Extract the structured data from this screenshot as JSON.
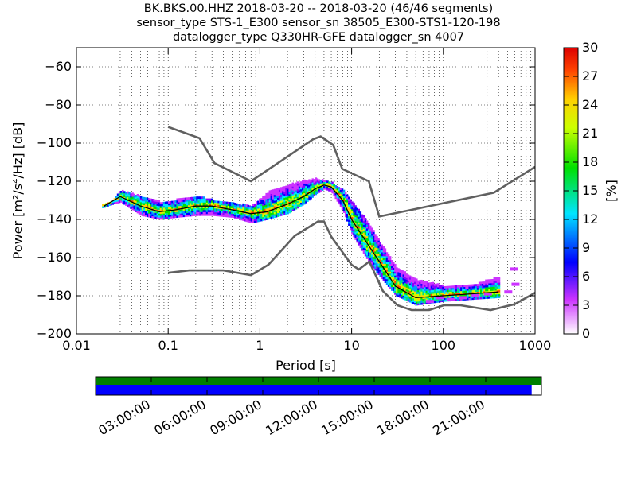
{
  "title_lines": [
    "BK.BKS.00.HHZ   2018-03-20 -- 2018-03-20  (46/46 segments)",
    "sensor_type STS-1_E300 sensor_sn 38505_E300-STS1-120-198",
    "datalogger_type Q330HR-GFE datalogger_sn 4007"
  ],
  "chart_data": {
    "type": "heatmap",
    "xlabel": "Period [s]",
    "ylabel": "Power [m²/s⁴/Hz] [dB]",
    "xscale": "log",
    "xlim": [
      0.01,
      1000
    ],
    "ylim": [
      -200,
      -50
    ],
    "x_ticks": [
      0.01,
      0.1,
      1,
      10,
      100,
      1000
    ],
    "x_tick_labels": [
      "0.01",
      "0.1",
      "1",
      "10",
      "100",
      "1000"
    ],
    "y_ticks": [
      -200,
      -180,
      -160,
      -140,
      -120,
      -100,
      -80,
      -60
    ],
    "y_tick_labels": [
      "−200",
      "−180",
      "−160",
      "−140",
      "−120",
      "−100",
      "−80",
      "−60"
    ],
    "grid": true,
    "colorbar": {
      "label": "[%]",
      "range": [
        0,
        30
      ],
      "ticks": [
        0,
        3,
        6,
        9,
        12,
        15,
        18,
        21,
        24,
        27,
        30
      ],
      "tick_labels": [
        "0",
        "3",
        "6",
        "9",
        "12",
        "15",
        "18",
        "21",
        "24",
        "27",
        "30"
      ]
    },
    "mode_line": {
      "x": [
        0.02,
        0.03,
        0.05,
        0.08,
        0.12,
        0.2,
        0.3,
        0.5,
        0.8,
        1.2,
        2,
        3,
        4,
        5,
        6,
        8,
        10,
        15,
        20,
        30,
        50,
        100,
        200,
        400
      ],
      "y": [
        -133,
        -128,
        -133,
        -136,
        -135,
        -133,
        -133,
        -135,
        -137,
        -136,
        -132,
        -128,
        -124,
        -122,
        -123,
        -130,
        -140,
        -153,
        -162,
        -175,
        -181,
        -180,
        -179,
        -178
      ]
    },
    "nhnm": {
      "x": [
        0.1,
        0.22,
        0.32,
        0.8,
        3.8,
        4.6,
        6.3,
        7.9,
        15.4,
        20,
        354.8,
        1000
      ],
      "y": [
        -91.5,
        -97.4,
        -110.5,
        -120,
        -98,
        -96.5,
        -101,
        -113.5,
        -120,
        -138.5,
        -126,
        -112.5
      ]
    },
    "nlnm": {
      "x": [
        0.1,
        0.17,
        0.4,
        0.8,
        1.24,
        2.4,
        4.3,
        5,
        6,
        10,
        12,
        15.6,
        21.9,
        31.6,
        45,
        70,
        101,
        154,
        328,
        600,
        1000
      ],
      "y": [
        -168,
        -166.7,
        -166.7,
        -169.2,
        -163.7,
        -148.6,
        -141.1,
        -141.1,
        -149,
        -163.8,
        -166.2,
        -162.1,
        -177.5,
        -185,
        -187.5,
        -187.5,
        -185,
        -185,
        -187.5,
        -184.4,
        -178.4
      ]
    },
    "psd_bands": [
      {
        "x": [
          0.019,
          0.025,
          0.03,
          0.05,
          0.08,
          0.12,
          0.2,
          0.3,
          0.5,
          0.8,
          1.2,
          2,
          3,
          4,
          5,
          6,
          8,
          10,
          15,
          20,
          30,
          50,
          100,
          200,
          400
        ],
        "lo": [
          -134,
          -132,
          -131,
          -138,
          -140,
          -139,
          -138,
          -138,
          -139,
          -142,
          -140,
          -137,
          -132,
          -127,
          -124,
          -126,
          -136,
          -148,
          -162,
          -170,
          -180,
          -185,
          -183,
          -182,
          -181
        ],
        "hi": [
          -132,
          -130,
          -125,
          -128,
          -131,
          -130,
          -128,
          -130,
          -132,
          -133,
          -126,
          -122,
          -120,
          -119,
          -120,
          -121,
          -125,
          -131,
          -142,
          -152,
          -165,
          -172,
          -175,
          -175,
          -170
        ]
      }
    ],
    "scatter_marks": [
      {
        "x": 70,
        "y": -183
      },
      {
        "x": 90,
        "y": -181
      },
      {
        "x": 120,
        "y": -182
      },
      {
        "x": 160,
        "y": -181
      },
      {
        "x": 220,
        "y": -180
      },
      {
        "x": 300,
        "y": -179
      },
      {
        "x": 500,
        "y": -178
      },
      {
        "x": 580,
        "y": -166
      },
      {
        "x": 600,
        "y": -174
      }
    ]
  },
  "timeline": {
    "tick_labels": [
      "03:00:00",
      "06:00:00",
      "09:00:00",
      "12:00:00",
      "15:00:00",
      "18:00:00",
      "21:00:00"
    ],
    "data_coverage_end_fraction": 0.978,
    "bar_colors": {
      "gaps_top": "#008000",
      "coverage": "#0000ff"
    }
  }
}
